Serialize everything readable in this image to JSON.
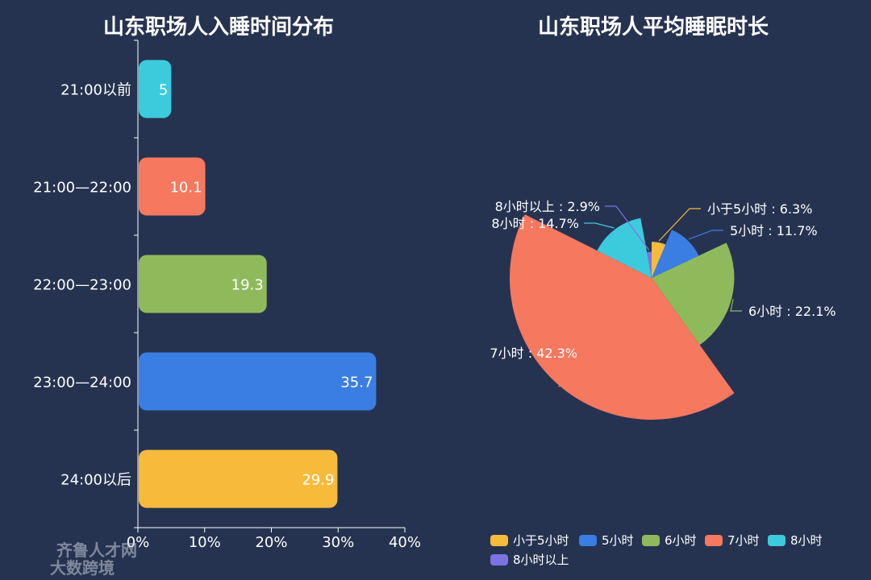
{
  "chart_data": [
    {
      "type": "bar",
      "title": "山东职场人入睡时间分布",
      "categories": [
        "21:00以前",
        "21:00—22:00",
        "22:00—23:00",
        "23:00—24:00",
        "24:00以后"
      ],
      "values": [
        5,
        10.1,
        19.3,
        35.7,
        29.9
      ],
      "value_labels": [
        "5",
        "10.1",
        "19.3",
        "35.7",
        "29.9"
      ],
      "colors": [
        "#3ccbdd",
        "#f6785f",
        "#8fba5c",
        "#3a7ee3",
        "#f7bb3c"
      ],
      "xlim": [
        0,
        40
      ],
      "x_ticks": [
        0,
        10,
        20,
        30,
        40
      ],
      "x_tick_labels": [
        "0%",
        "10%",
        "20%",
        "30%",
        "40%"
      ],
      "orientation": "horizontal",
      "grid": false
    },
    {
      "type": "pie",
      "title": "山东职场人平均睡眠时长",
      "rose": true,
      "categories": [
        "小于5小时",
        "5小时",
        "6小时",
        "7小时",
        "8小时",
        "8小时以上"
      ],
      "values": [
        6.3,
        11.7,
        22.1,
        42.3,
        14.7,
        2.9
      ],
      "labels": [
        "小于5小时 : 6.3%",
        "5小时 : 11.7%",
        "6小时 : 22.1%",
        "7小时 : 42.3%",
        "8小时 : 14.7%",
        "8小时以上 : 2.9%"
      ],
      "colors": [
        "#f7bb3c",
        "#3a7ee3",
        "#8fba5c",
        "#f6785f",
        "#3ccbdd",
        "#7b73e3"
      ],
      "legend": "bottom-left"
    }
  ],
  "watermark": {
    "line1": "齐鲁人才网",
    "line2": "大数跨境"
  }
}
